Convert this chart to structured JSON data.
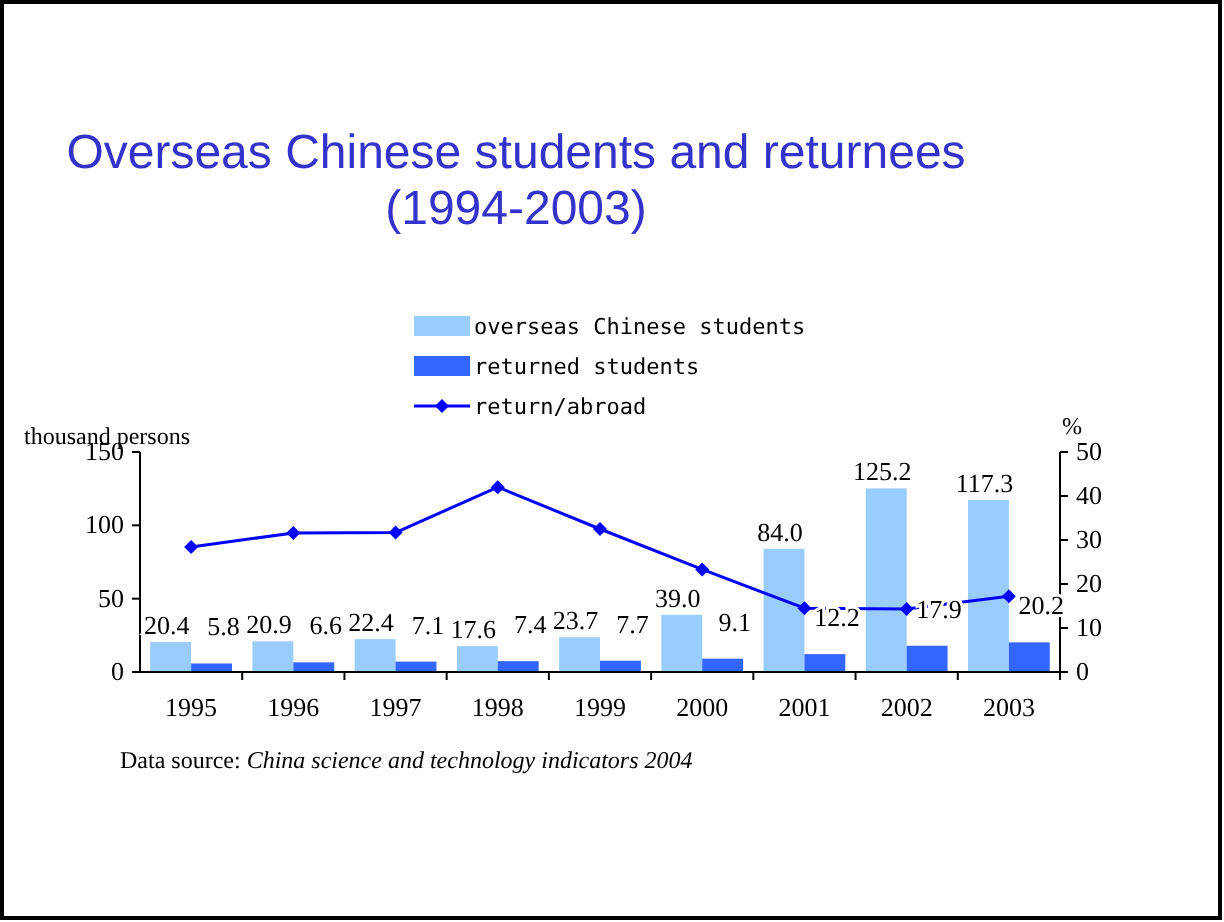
{
  "chart_data": {
    "type": "bar",
    "title": "Overseas Chinese students and returnees\n(1994-2003)",
    "ylabel": "thousand persons",
    "y2label": "%",
    "categories": [
      "1995",
      "1996",
      "1997",
      "1998",
      "1999",
      "2000",
      "2001",
      "2002",
      "2003"
    ],
    "series": [
      {
        "name": "overseas Chinese students",
        "color": "#99ccff",
        "values": [
          20.4,
          20.9,
          22.4,
          17.6,
          23.7,
          39.0,
          84.0,
          125.2,
          117.3
        ],
        "value_labels": [
          "20.4",
          "20.9",
          "22.4",
          "17.6",
          "23.7",
          "39.0",
          "84.0",
          "125.2",
          "117.3"
        ]
      },
      {
        "name": "returned students",
        "color": "#3366ff",
        "values": [
          5.8,
          6.6,
          7.1,
          7.4,
          7.7,
          9.1,
          12.2,
          17.9,
          20.2
        ],
        "value_labels": [
          "5.8",
          "6.6",
          "7.1",
          "7.4",
          "7.7",
          "9.1",
          "12.2",
          "17.9",
          "20.2"
        ]
      },
      {
        "name": "return/abroad",
        "type": "line",
        "axis": "y2",
        "color": "#0000ff",
        "marker": "diamond",
        "values": [
          28.4,
          31.6,
          31.7,
          42.0,
          32.5,
          23.3,
          14.5,
          14.3,
          17.2
        ]
      }
    ],
    "ylim": [
      0,
      150
    ],
    "yticks": [
      0,
      50,
      100,
      150
    ],
    "y2lim": [
      0,
      50
    ],
    "y2ticks": [
      0,
      10,
      20,
      30,
      40,
      50
    ],
    "legend": "top",
    "grid": false,
    "annotations": [
      "Data source: China science and technology indicators 2004"
    ]
  }
}
